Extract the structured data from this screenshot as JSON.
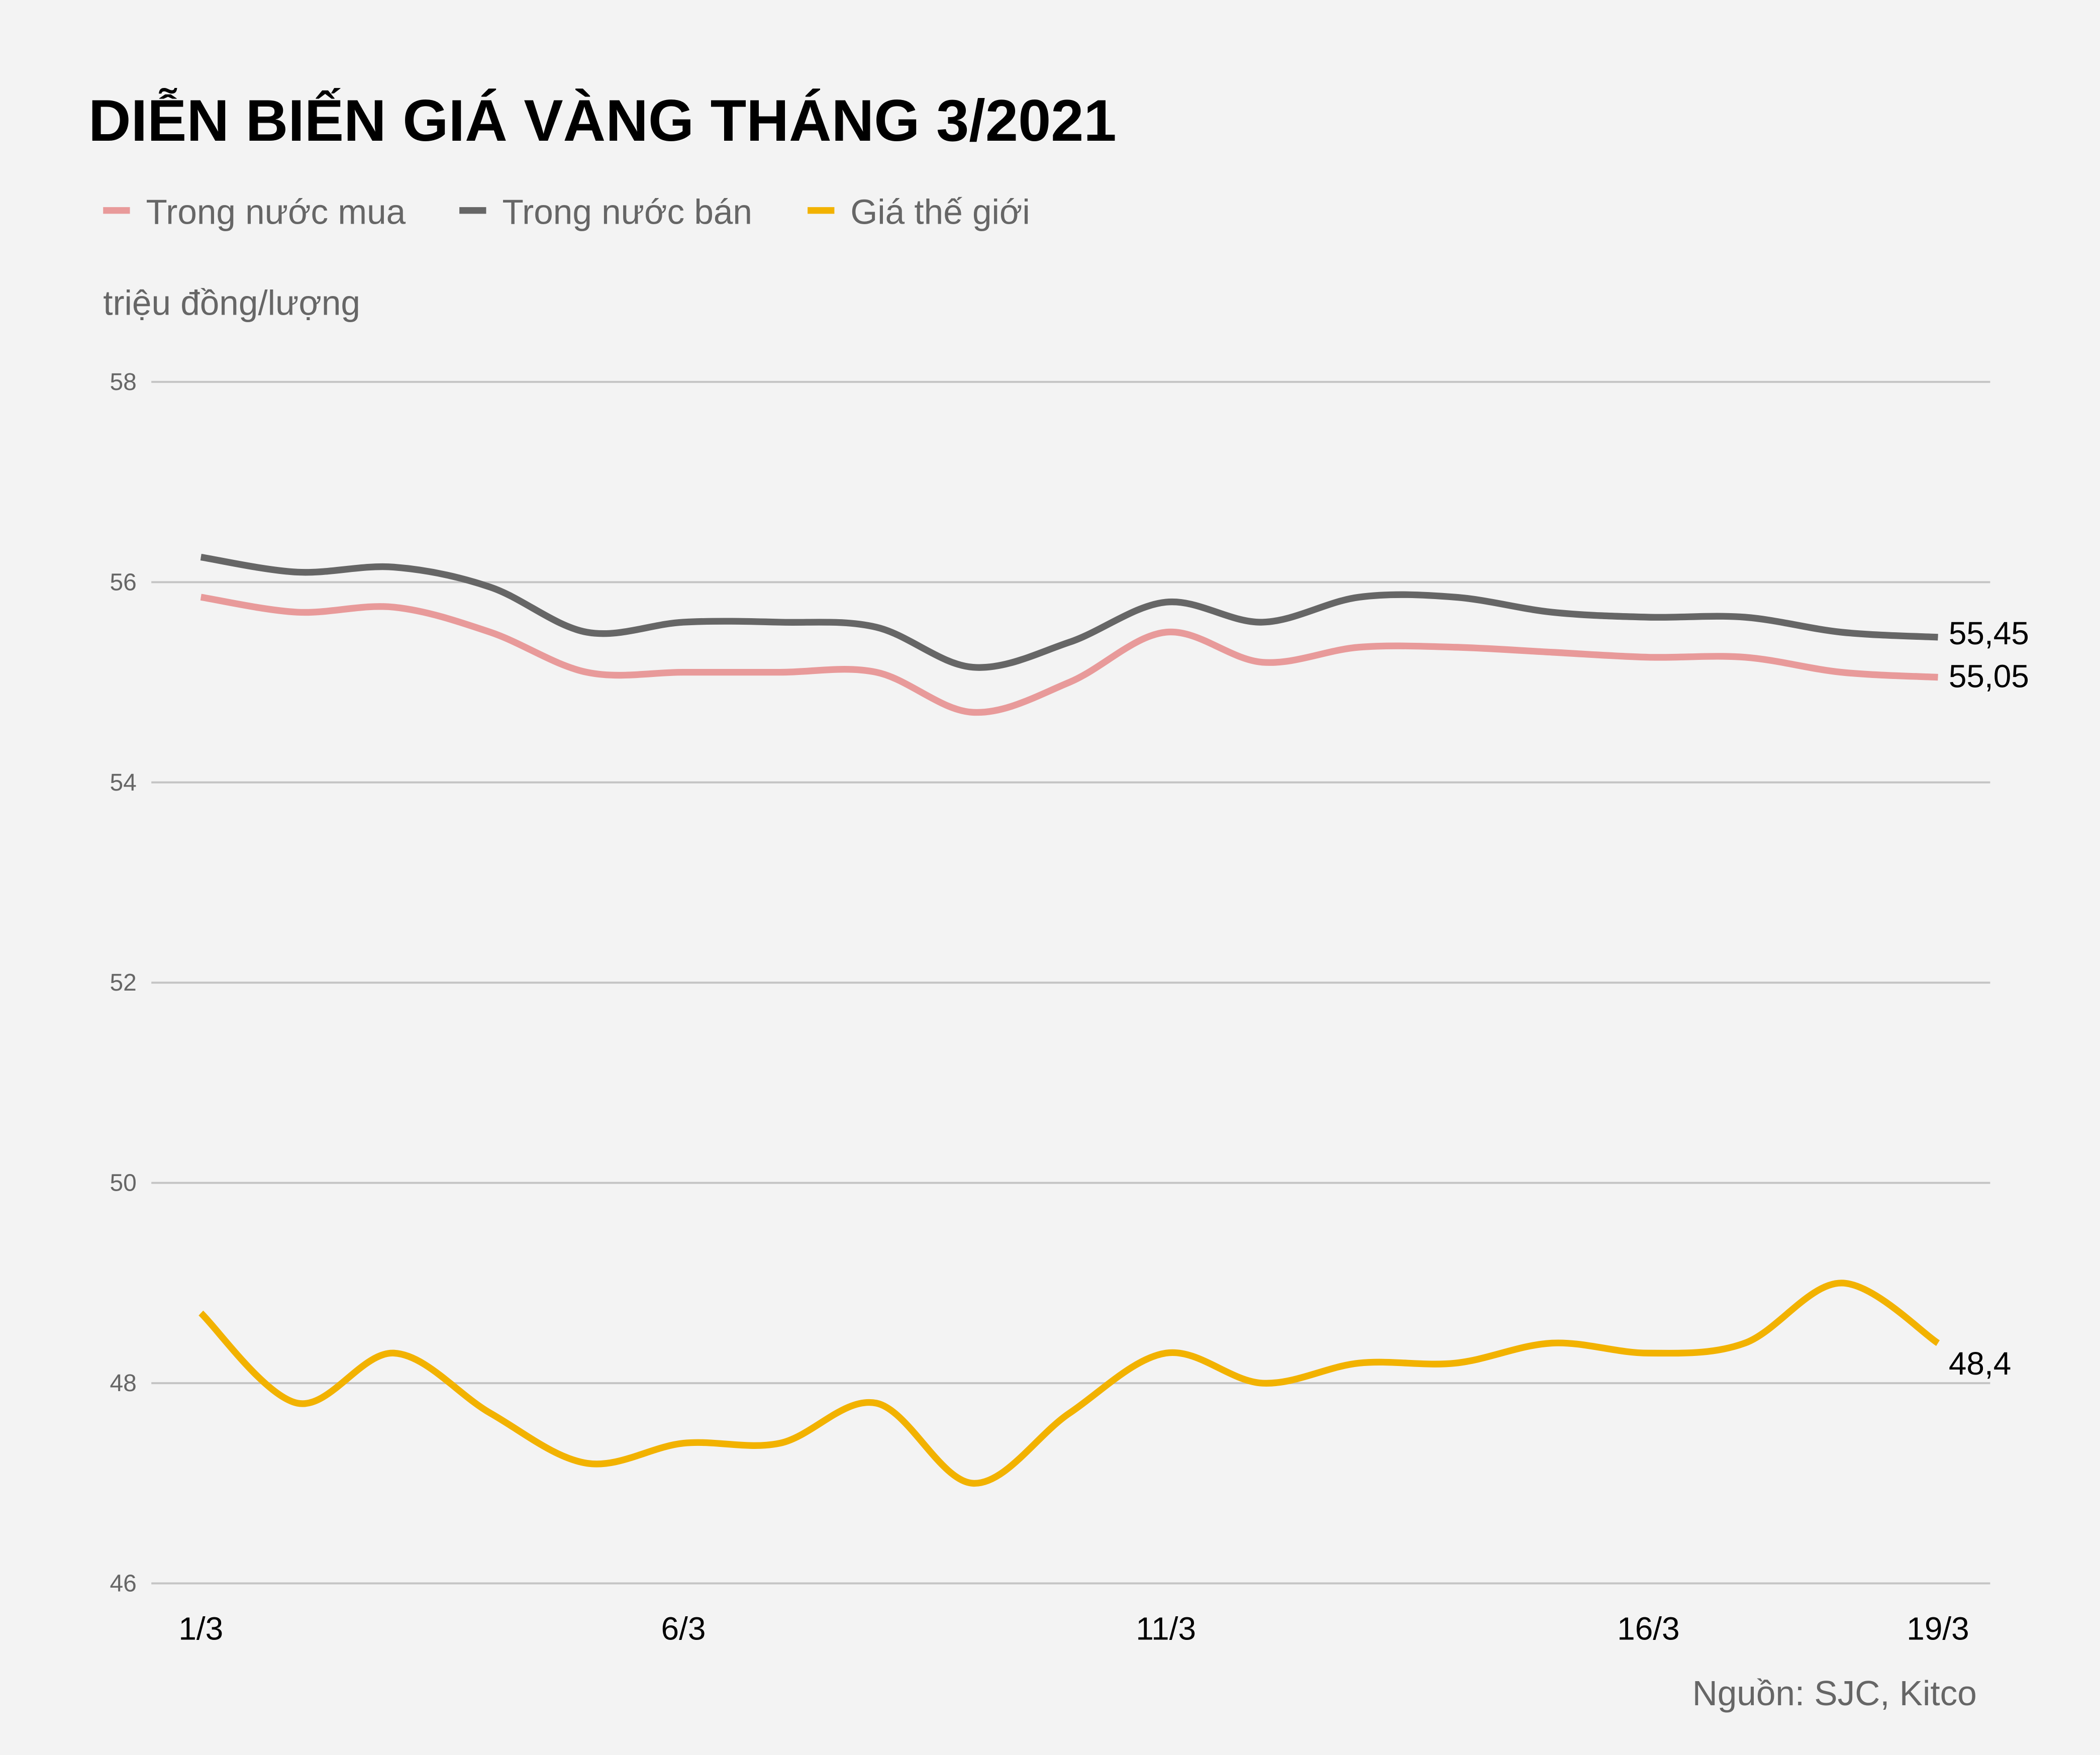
{
  "chart_data": {
    "type": "line",
    "title": "DIỄN BIẾN GIÁ VÀNG THÁNG 3/2021",
    "ylabel": "triệu đồng/lượng",
    "xlabel": "",
    "source": "Nguồn: SJC, Kitco",
    "ylim": [
      46,
      58
    ],
    "yticks": [
      "46",
      "48",
      "50",
      "52",
      "54",
      "56",
      "58"
    ],
    "x": [
      "1/3",
      "2/3",
      "3/3",
      "4/3",
      "5/3",
      "6/3",
      "7/3",
      "8/3",
      "9/3",
      "10/3",
      "11/3",
      "12/3",
      "13/3",
      "14/3",
      "15/3",
      "16/3",
      "17/3",
      "18/3",
      "19/3"
    ],
    "xticks": [
      "1/3",
      "6/3",
      "11/3",
      "16/3",
      "19/3"
    ],
    "grid": true,
    "legend_position": "top-left",
    "series": [
      {
        "name": "Trong nước mua",
        "color": "#e89a9a",
        "end_label": "55,05",
        "values": [
          55.85,
          55.7,
          55.75,
          55.5,
          55.1,
          55.1,
          55.1,
          55.1,
          54.7,
          55.0,
          55.5,
          55.2,
          55.35,
          55.35,
          55.3,
          55.25,
          55.25,
          55.1,
          55.05
        ]
      },
      {
        "name": "Trong nước bán",
        "color": "#666666",
        "end_label": "55,45",
        "values": [
          56.25,
          56.1,
          56.15,
          55.95,
          55.5,
          55.6,
          55.6,
          55.55,
          55.15,
          55.4,
          55.8,
          55.6,
          55.85,
          55.85,
          55.7,
          55.65,
          55.65,
          55.5,
          55.45
        ]
      },
      {
        "name": "Giá thế giới",
        "color": "#f2b200",
        "end_label": "48,4",
        "values": [
          48.7,
          47.8,
          48.3,
          47.7,
          47.2,
          47.4,
          47.4,
          47.8,
          47.0,
          47.7,
          48.3,
          48.0,
          48.2,
          48.2,
          48.4,
          48.3,
          48.4,
          49.0,
          48.4
        ]
      }
    ]
  }
}
